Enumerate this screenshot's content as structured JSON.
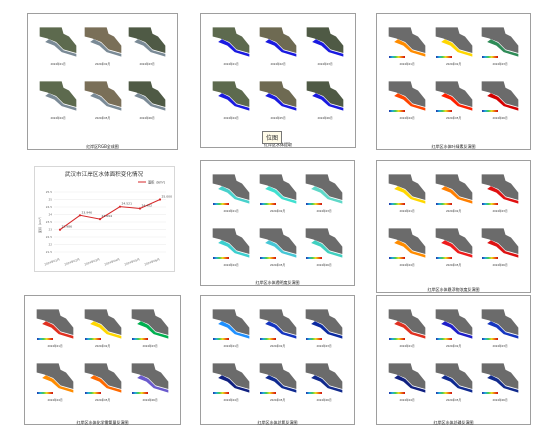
{
  "panels": [
    {
      "id": "rgb",
      "caption": "红岸区RGB全成图",
      "style": "rgb",
      "labels": [
        "2024年01月",
        "2024年02月",
        "2024年03月",
        "2024年04月",
        "2024年05月",
        "2024年06月"
      ],
      "legend": false
    },
    {
      "id": "water",
      "caption": "红岸区水体提取",
      "style": "water",
      "labels": [
        "2024年01月",
        "2024年02月",
        "2024年03月",
        "2024年04月",
        "2024年05月",
        "2024年06月"
      ],
      "legend": false
    },
    {
      "id": "chl",
      "caption": "红岸区水体叶绿素反演图",
      "style": "chl",
      "labels": [
        "2024年01月",
        "2024年02月",
        "2024年03月",
        "2024年04月",
        "2024年05月",
        "2024年06月"
      ],
      "legend": true
    },
    {
      "id": "trans",
      "caption": "红岸区水体透明度反演图",
      "style": "trans",
      "labels": [
        "2024年01月",
        "2024年02月",
        "2024年03月",
        "2024年04月",
        "2024年05月",
        "2024年06月"
      ],
      "legend": true
    },
    {
      "id": "ss",
      "caption": "红岸区水体悬浮物浓度反演图",
      "style": "ss",
      "labels": [
        "2024年01月",
        "2024年02月",
        "2024年03月",
        "2024年04月",
        "2024年05月",
        "2024年06月"
      ],
      "legend": true
    },
    {
      "id": "cod",
      "caption": "红岸区水体化学需氧量反演图",
      "style": "cod",
      "labels": [
        "2024年01月",
        "2024年02月",
        "2024年03月",
        "2024年04月",
        "2024年05月",
        "2024年06月"
      ],
      "legend": true
    },
    {
      "id": "tn",
      "caption": "红岸区水体总氮反演图",
      "style": "tn",
      "labels": [
        "2024年01月",
        "2024年02月",
        "2024年03月",
        "2024年04月",
        "2024年05月",
        "2024年06月"
      ],
      "legend": true
    },
    {
      "id": "tp",
      "caption": "红岸区水体总磷反演图",
      "style": "tp",
      "labels": [
        "2024年01月",
        "2024年02月",
        "2024年03月",
        "2024年04月",
        "2024年05月",
        "2024年06月"
      ],
      "legend": true
    }
  ],
  "tooltip": "位图",
  "chart_data": {
    "type": "line",
    "title": "武汉市江岸区水体面积变化情况",
    "legend": "面积（km²）",
    "ylabel": "面积（km²）",
    "categories": [
      "2024年01月",
      "2024年02月",
      "2024年03月",
      "2024年04月",
      "2024年05月",
      "2024年06月"
    ],
    "values": [
      22.986,
      23.946,
      23.694,
      24.521,
      24.402,
      25.0
    ],
    "value_labels": [
      "22.986",
      "23.946",
      "23.694",
      "24.521",
      "24.402",
      "25.000"
    ],
    "ylim": [
      21.5,
      25.5
    ],
    "yticks": [
      "21.5",
      "22",
      "22.5",
      "23",
      "23.5",
      "24",
      "24.5",
      "25",
      "25.5"
    ],
    "color": "#d62728",
    "grid": true,
    "legend_position": "top-right"
  }
}
